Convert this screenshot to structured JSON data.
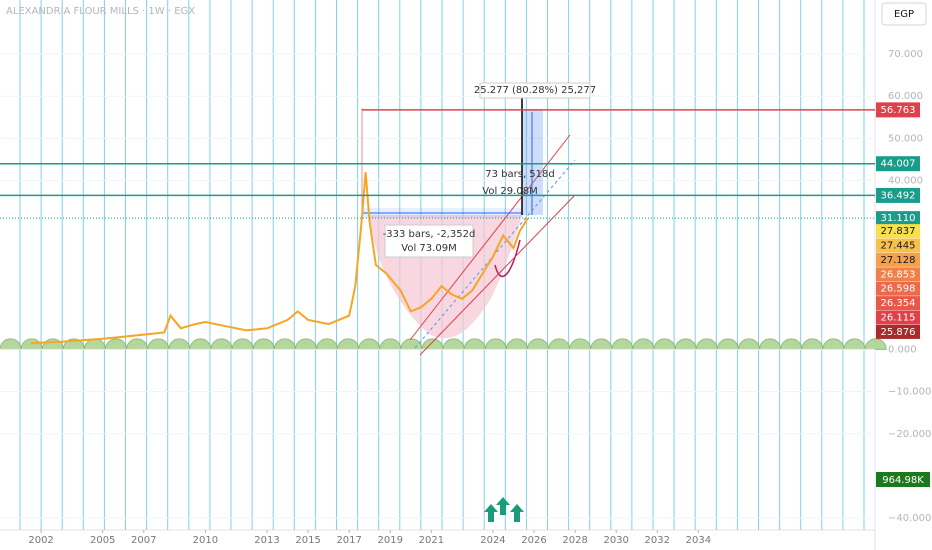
{
  "header": {
    "title": "ALEXANDRIA FLOUR MILLS · 1W · EGX",
    "currency": "EGP"
  },
  "chart_data": {
    "type": "line",
    "x": [
      2001.5,
      2003,
      2005,
      2006,
      2007,
      2008,
      2008.3,
      2008.8,
      2009.5,
      2010,
      2011,
      2012,
      2013,
      2014,
      2014.5,
      2015,
      2016,
      2016.5,
      2017,
      2017.3,
      2017.6,
      2017.8,
      2018,
      2018.3,
      2018.8,
      2019.5,
      2020,
      2020.5,
      2021,
      2021.5,
      2022,
      2022.5,
      2023,
      2023.5,
      2024,
      2024.5,
      2025,
      2025.3,
      2025.7
    ],
    "series": [
      {
        "color": "#f5a623",
        "values": [
          1.5,
          1.8,
          2.5,
          3,
          3.5,
          4,
          8,
          5,
          6,
          6.5,
          5.5,
          4.5,
          5,
          7,
          9,
          7,
          6,
          7,
          8,
          15,
          30,
          42,
          30,
          20,
          18,
          14,
          9,
          10,
          12,
          15,
          13,
          12,
          14,
          18,
          22,
          27,
          24,
          28,
          31.11
        ]
      }
    ],
    "xlim": [
      2000,
      2042.6
    ],
    "xticks": [
      2002,
      2005,
      2007,
      2010,
      2013,
      2015,
      2017,
      2019,
      2021,
      2024,
      2026,
      2028,
      2030,
      2032,
      2034
    ],
    "ylim": [
      -42.8,
      82.8
    ],
    "yticks": [
      {
        "value": 70,
        "label": "70.000"
      },
      {
        "value": 60,
        "label": "60.000"
      },
      {
        "value": 50,
        "label": "50.000"
      },
      {
        "value": 40,
        "label": "40.000"
      },
      {
        "value": 0,
        "label": "0.000"
      },
      {
        "value": -10,
        "label": "−10.000"
      },
      {
        "value": -20,
        "label": "−20.000"
      },
      {
        "value": -40,
        "label": "−40.000"
      }
    ],
    "levels": [
      {
        "value": 56.763,
        "label": "56.763",
        "color": "#e0404a"
      },
      {
        "value": 44.007,
        "label": "44.007",
        "color": "#1a9c8c"
      },
      {
        "value": 36.492,
        "label": "36.492",
        "color": "#1a9c8c"
      }
    ],
    "price_tags": [
      {
        "value": 31.11,
        "label": "31.110",
        "color": "#1a9c8c"
      },
      {
        "value": 27.837,
        "label": "27.837",
        "color": "#f7e04a"
      },
      {
        "value": 27.445,
        "label": "27.445",
        "color": "#f7c04a"
      },
      {
        "value": 27.128,
        "label": "27.128",
        "color": "#f5a04a"
      },
      {
        "value": 26.853,
        "label": "26.853",
        "color": "#f0804a"
      },
      {
        "value": 26.598,
        "label": "26.598",
        "color": "#ec6a4a"
      },
      {
        "value": 26.354,
        "label": "26.354",
        "color": "#e8584a"
      },
      {
        "value": 26.115,
        "label": "26.115",
        "color": "#e0404a"
      },
      {
        "value": 25.876,
        "label": "25.876",
        "color": "#a82a2a"
      }
    ],
    "volume_tag": "964.98K",
    "annotations": [
      "25.277 (80.28%) 25,277",
      "73 bars, 518d",
      "Vol 29.08M",
      "-333 bars, -2,352d",
      "Vol 73.09M"
    ]
  }
}
